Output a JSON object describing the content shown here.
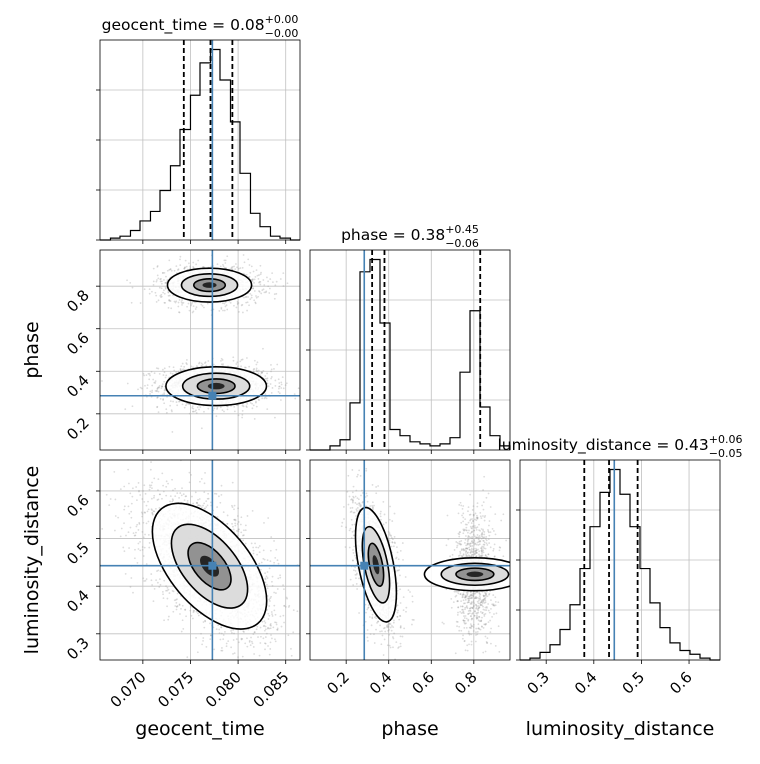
{
  "chart_data": {
    "type": "corner",
    "parameters": [
      "geocent_time",
      "phase",
      "luminosity_distance"
    ],
    "truths": {
      "geocent_time": 0.0773,
      "phase": 0.285,
      "luminosity_distance": 0.443
    },
    "titles": [
      {
        "param": "geocent_time",
        "prefix": "geocent_time = ",
        "median": "0.08",
        "plus": "+0.00",
        "minus": "−0.00"
      },
      {
        "param": "phase",
        "prefix": "phase = ",
        "median": "0.38",
        "plus": "+0.45",
        "minus": "−0.06"
      },
      {
        "param": "luminosity_distance",
        "prefix": "luminosity_distance = ",
        "median": "0.43",
        "plus": "+0.06",
        "minus": "−0.05"
      }
    ],
    "axes": {
      "geocent_time": {
        "range": [
          0.0655,
          0.0865
        ],
        "ticks": [
          0.07,
          0.075,
          0.08,
          0.085
        ],
        "tick_labels": [
          "0.070",
          "0.075",
          "0.080",
          "0.085"
        ]
      },
      "phase": {
        "range": [
          0.03,
          0.97
        ],
        "ticks": [
          0.2,
          0.4,
          0.6,
          0.8
        ],
        "tick_labels": [
          "0.2",
          "0.4",
          "0.6",
          "0.8"
        ]
      },
      "luminosity_distance": {
        "range": [
          0.245,
          0.665
        ],
        "ticks": [
          0.3,
          0.4,
          0.5,
          0.6
        ],
        "tick_labels": [
          "0.3",
          "0.4",
          "0.5",
          "0.6"
        ]
      }
    },
    "histograms": [
      {
        "param": "geocent_time",
        "edges": [
          0.0655,
          0.0666,
          0.0676,
          0.0687,
          0.0697,
          0.0708,
          0.0718,
          0.0729,
          0.0739,
          0.075,
          0.076,
          0.0771,
          0.0781,
          0.0792,
          0.0802,
          0.0813,
          0.0823,
          0.0834,
          0.0844,
          0.0855,
          0.0865
        ],
        "counts": [
          0.0,
          0.01,
          0.02,
          0.05,
          0.1,
          0.15,
          0.26,
          0.39,
          0.58,
          0.76,
          0.93,
          1.0,
          0.84,
          0.62,
          0.35,
          0.14,
          0.07,
          0.02,
          0.01,
          0.0
        ],
        "quantiles": [
          0.0743,
          0.0771,
          0.0794
        ]
      },
      {
        "param": "phase",
        "edges": [
          0.03,
          0.077,
          0.124,
          0.171,
          0.218,
          0.265,
          0.312,
          0.359,
          0.406,
          0.453,
          0.5,
          0.547,
          0.594,
          0.641,
          0.688,
          0.735,
          0.782,
          0.829,
          0.876,
          0.923,
          0.97
        ],
        "counts": [
          0.0,
          0.0,
          0.02,
          0.05,
          0.23,
          0.87,
          0.93,
          0.62,
          0.1,
          0.07,
          0.04,
          0.03,
          0.02,
          0.03,
          0.06,
          0.38,
          0.68,
          0.21,
          0.07,
          0.02
        ],
        "quantiles": [
          0.322,
          0.38,
          0.83
        ]
      },
      {
        "param": "luminosity_distance",
        "edges": [
          0.245,
          0.266,
          0.287,
          0.308,
          0.329,
          0.35,
          0.371,
          0.392,
          0.413,
          0.434,
          0.455,
          0.476,
          0.497,
          0.518,
          0.539,
          0.56,
          0.581,
          0.602,
          0.623,
          0.644,
          0.665
        ],
        "counts": [
          0.0,
          0.01,
          0.04,
          0.08,
          0.16,
          0.29,
          0.48,
          0.7,
          0.88,
          1.0,
          0.87,
          0.7,
          0.48,
          0.3,
          0.17,
          0.09,
          0.05,
          0.03,
          0.01,
          0.0
        ],
        "quantiles": [
          0.38,
          0.432,
          0.492
        ]
      }
    ],
    "joint": [
      {
        "x": "geocent_time",
        "y": "phase",
        "modes": [
          {
            "cx": 0.0777,
            "cy": 0.33,
            "sx": 0.0022,
            "sy": 0.038,
            "rho": 0.0,
            "weight": 0.58
          },
          {
            "cx": 0.077,
            "cy": 0.805,
            "sx": 0.002,
            "sy": 0.036,
            "rho": 0.0,
            "weight": 0.42
          }
        ]
      },
      {
        "x": "geocent_time",
        "y": "luminosity_distance",
        "modes": [
          {
            "cx": 0.077,
            "cy": 0.442,
            "sx": 0.0025,
            "sy": 0.055,
            "rho": -0.55,
            "weight": 1.0
          }
        ]
      },
      {
        "x": "phase",
        "y": "luminosity_distance",
        "modes": [
          {
            "cx": 0.34,
            "cy": 0.445,
            "sx": 0.04,
            "sy": 0.05,
            "rho": -0.5,
            "weight": 0.58
          },
          {
            "cx": 0.805,
            "cy": 0.425,
            "sx": 0.035,
            "sy": 0.048,
            "rho": 0.0,
            "weight": 0.42
          }
        ]
      }
    ],
    "colors": {
      "truth": "#4682b4",
      "grid": "#c0c0c0",
      "points": "#9a9a9a",
      "line": "#000000"
    }
  }
}
